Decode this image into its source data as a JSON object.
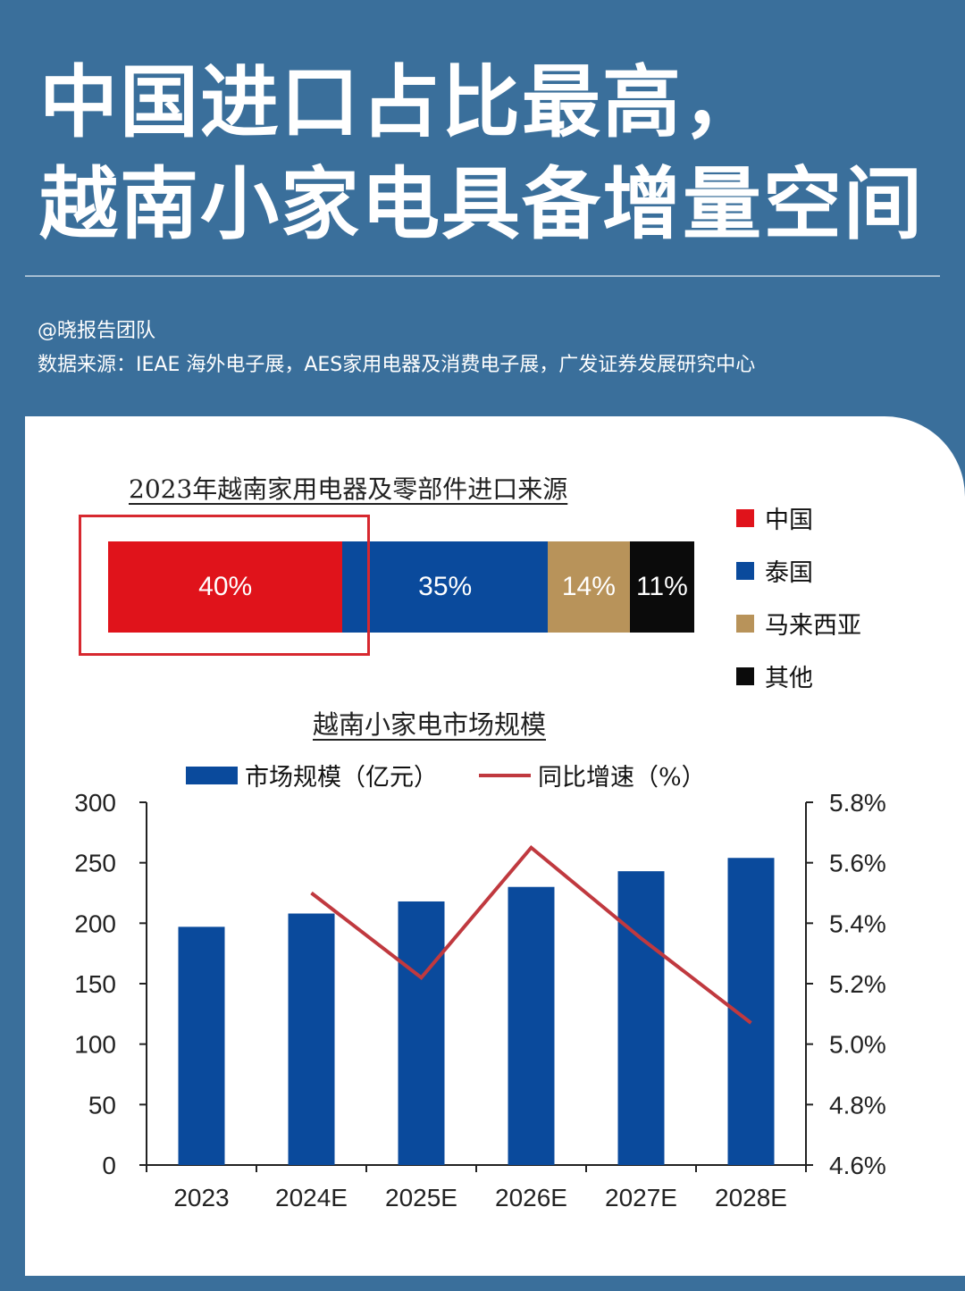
{
  "header": {
    "title_line1": "中国进口占比最高，",
    "title_line2": "越南小家电具备增量空间",
    "author": "@晓报告团队",
    "source": "数据来源：IEAE 海外电子展，AES家用电器及消费电子展，广发证券发展研究中心"
  },
  "chart_data": [
    {
      "type": "bar",
      "stacked": true,
      "orientation": "horizontal",
      "title": "2023年越南家用电器及零部件进口来源",
      "series": [
        {
          "name": "中国",
          "value": 40,
          "label": "40%",
          "color": "#e0131b"
        },
        {
          "name": "泰国",
          "value": 35,
          "label": "35%",
          "color": "#0a4a9c"
        },
        {
          "name": "马来西亚",
          "value": 14,
          "label": "14%",
          "color": "#b8935a"
        },
        {
          "name": "其他",
          "value": 11,
          "label": "11%",
          "color": "#0b0b0b"
        }
      ],
      "legend": "right",
      "highlighted": "中国"
    },
    {
      "type": "bar",
      "title": "越南小家电市场规模",
      "categories": [
        "2023",
        "2024E",
        "2025E",
        "2026E",
        "2027E",
        "2028E"
      ],
      "series": [
        {
          "name": "市场规模（亿元）",
          "type": "bar",
          "axis": "left",
          "color": "#0a4a9c",
          "values": [
            197,
            208,
            218,
            230,
            243,
            254
          ]
        },
        {
          "name": "同比增速（%）",
          "type": "line",
          "axis": "right",
          "color": "#c0393f",
          "values": [
            null,
            5.5,
            5.22,
            5.65,
            5.35,
            5.07
          ]
        }
      ],
      "y_left": {
        "range": [
          0,
          300
        ],
        "ticks": [
          "0",
          "50",
          "100",
          "150",
          "200",
          "250",
          "300"
        ]
      },
      "y_right": {
        "range": [
          4.6,
          5.8
        ],
        "ticks": [
          "4.6%",
          "4.8%",
          "5.0%",
          "5.2%",
          "5.4%",
          "5.6%",
          "5.8%"
        ]
      },
      "legend": "top",
      "grid": false
    }
  ]
}
